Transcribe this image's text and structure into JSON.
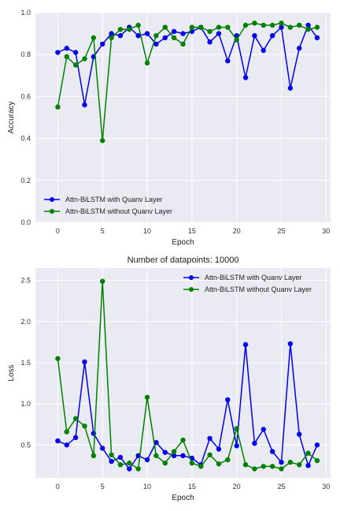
{
  "colors": {
    "series1": "#0000ee",
    "series2": "#008000",
    "plot_bg": "#eaeaf2",
    "grid": "#ffffff"
  },
  "chart_data": [
    {
      "type": "line",
      "title": "",
      "xlabel": "Epoch",
      "ylabel": "Accuracy",
      "xlim": [
        -2.5,
        30.5
      ],
      "ylim": [
        0,
        1
      ],
      "xticks": [
        0,
        5,
        10,
        15,
        20,
        25,
        30
      ],
      "yticks": [
        0,
        0.2,
        0.4,
        0.6,
        0.8,
        1
      ],
      "xtick_labels": [
        "0",
        "5",
        "10",
        "15",
        "20",
        "25",
        "30"
      ],
      "ytick_labels": [
        "0.0",
        "0.2",
        "0.4",
        "0.6",
        "0.8",
        "1.0"
      ],
      "legend_position": "lower-left",
      "grid": true,
      "x": [
        0,
        1,
        2,
        3,
        4,
        5,
        6,
        7,
        8,
        9,
        10,
        11,
        12,
        13,
        14,
        15,
        16,
        17,
        18,
        19,
        20,
        21,
        22,
        23,
        24,
        25,
        26,
        27,
        28,
        29
      ],
      "series": [
        {
          "name": "Attn-BiLSTM with Quanv Layer",
          "color": "#0000ee",
          "values": [
            0.81,
            0.83,
            0.81,
            0.56,
            0.79,
            0.85,
            0.9,
            0.89,
            0.93,
            0.89,
            0.9,
            0.85,
            0.88,
            0.91,
            0.9,
            0.91,
            0.93,
            0.86,
            0.9,
            0.77,
            0.89,
            0.69,
            0.89,
            0.82,
            0.89,
            0.93,
            0.64,
            0.83,
            0.94,
            0.88
          ]
        },
        {
          "name": "Attn-BiLSTM without Quanv Layer",
          "color": "#008000",
          "values": [
            0.55,
            0.79,
            0.75,
            0.78,
            0.88,
            0.39,
            0.88,
            0.92,
            0.92,
            0.94,
            0.76,
            0.89,
            0.93,
            0.88,
            0.85,
            0.93,
            0.93,
            0.91,
            0.93,
            0.93,
            0.87,
            0.94,
            0.95,
            0.94,
            0.94,
            0.95,
            0.93,
            0.94,
            0.92,
            0.93
          ]
        }
      ]
    },
    {
      "type": "line",
      "title": "Number of datapoints: 10000",
      "xlabel": "Epoch",
      "ylabel": "Loss",
      "xlim": [
        -2.5,
        30.5
      ],
      "ylim": [
        0.1,
        2.65
      ],
      "xticks": [
        0,
        5,
        10,
        15,
        20,
        25,
        30
      ],
      "yticks": [
        0.5,
        1.0,
        1.5,
        2.0,
        2.5
      ],
      "xtick_labels": [
        "0",
        "5",
        "10",
        "15",
        "20",
        "25",
        "30"
      ],
      "ytick_labels": [
        "0.5",
        "1.0",
        "1.5",
        "2.0",
        "2.5"
      ],
      "legend_position": "top-right",
      "grid": true,
      "x": [
        0,
        1,
        2,
        3,
        4,
        5,
        6,
        7,
        8,
        9,
        10,
        11,
        12,
        13,
        14,
        15,
        16,
        17,
        18,
        19,
        20,
        21,
        22,
        23,
        24,
        25,
        26,
        27,
        28,
        29
      ],
      "series": [
        {
          "name": "Attn-BiLSTM with Quanv Layer",
          "color": "#0000ee",
          "values": [
            0.55,
            0.5,
            0.59,
            1.51,
            0.64,
            0.46,
            0.3,
            0.35,
            0.21,
            0.37,
            0.32,
            0.53,
            0.41,
            0.37,
            0.37,
            0.34,
            0.26,
            0.58,
            0.45,
            1.05,
            0.49,
            1.72,
            0.52,
            0.69,
            0.42,
            0.29,
            1.73,
            0.63,
            0.25,
            0.5
          ]
        },
        {
          "name": "Attn-BiLSTM without Quanv Layer",
          "color": "#008000",
          "values": [
            1.55,
            0.66,
            0.82,
            0.73,
            0.37,
            2.49,
            0.38,
            0.26,
            0.28,
            0.21,
            1.08,
            0.37,
            0.28,
            0.42,
            0.56,
            0.28,
            0.24,
            0.38,
            0.27,
            0.32,
            0.7,
            0.26,
            0.21,
            0.24,
            0.24,
            0.21,
            0.29,
            0.26,
            0.4,
            0.31
          ]
        }
      ]
    }
  ]
}
